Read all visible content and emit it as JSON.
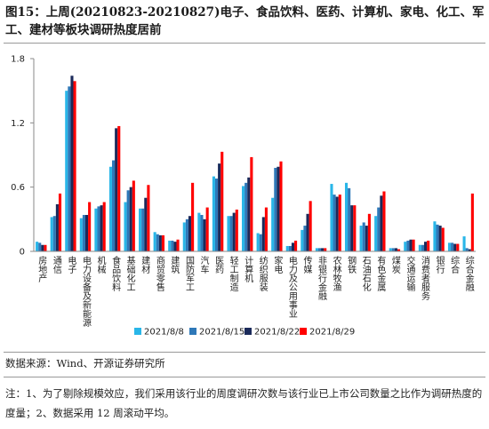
{
  "chart_data": {
    "type": "bar",
    "title": "图15：上周(20210823-20210827)电子、食品饮料、医药、计算机、家电、化工、军工、建材等板块调研热度居前",
    "source": "数据来源：Wind、开源证券研究所",
    "note": "注：1、为了剔除规模效应，我们采用该行业的周度调研次数与该行业已上市公司数量之比作为调研热度的度量；2、数据采用 12 周滚动平均。",
    "categories": [
      "房地产",
      "通信",
      "电子",
      "电力设备及新能源",
      "机械",
      "食品饮料",
      "基础化工",
      "建材",
      "商贸零售",
      "建筑",
      "国防军工",
      "汽车",
      "医药",
      "轻工制造",
      "计算机",
      "纺织服装",
      "家电",
      "电力及公用事业",
      "传媒",
      "非银行金融",
      "农林牧渔",
      "钢铁",
      "石油石化",
      "有色金属",
      "煤炭",
      "交通运输",
      "消费者服务",
      "银行",
      "综合",
      "综合金融"
    ],
    "series": [
      {
        "name": "2021/8/8",
        "color": "#29b6e8",
        "values": [
          0.09,
          0.32,
          1.5,
          0.31,
          0.4,
          0.79,
          0.46,
          0.4,
          0.18,
          0.1,
          0.27,
          0.36,
          0.7,
          0.33,
          0.61,
          0.17,
          0.5,
          0.05,
          0.2,
          0.03,
          0.63,
          0.64,
          0.24,
          0.33,
          0.03,
          0.09,
          0.06,
          0.28,
          0.08,
          0.14
        ]
      },
      {
        "name": "2021/8/15",
        "color": "#2e78b8",
        "values": [
          0.08,
          0.33,
          1.54,
          0.34,
          0.42,
          0.85,
          0.57,
          0.4,
          0.16,
          0.1,
          0.3,
          0.34,
          0.68,
          0.33,
          0.64,
          0.16,
          0.78,
          0.05,
          0.24,
          0.03,
          0.53,
          0.59,
          0.27,
          0.41,
          0.03,
          0.1,
          0.06,
          0.25,
          0.08,
          0.03
        ]
      },
      {
        "name": "2021/8/22",
        "color": "#1b2a5a",
        "values": [
          0.06,
          0.44,
          1.64,
          0.34,
          0.43,
          1.15,
          0.6,
          0.5,
          0.15,
          0.09,
          0.33,
          0.3,
          0.82,
          0.36,
          0.69,
          0.32,
          0.79,
          0.08,
          0.35,
          0.03,
          0.51,
          0.43,
          0.24,
          0.52,
          0.03,
          0.11,
          0.09,
          0.24,
          0.07,
          0.02
        ]
      },
      {
        "name": "2021/8/29",
        "color": "#ff0000",
        "values": [
          0.06,
          0.54,
          1.59,
          0.46,
          0.46,
          1.17,
          0.66,
          0.62,
          0.15,
          0.11,
          0.64,
          0.41,
          0.93,
          0.39,
          0.88,
          0.41,
          0.84,
          0.1,
          0.47,
          0.03,
          0.53,
          0.43,
          0.35,
          0.56,
          0.02,
          0.11,
          0.1,
          0.22,
          0.07,
          0.54
        ]
      }
    ],
    "ylim": [
      0,
      1.8
    ],
    "yticks": [
      0,
      0.6,
      1.2,
      1.8
    ]
  }
}
